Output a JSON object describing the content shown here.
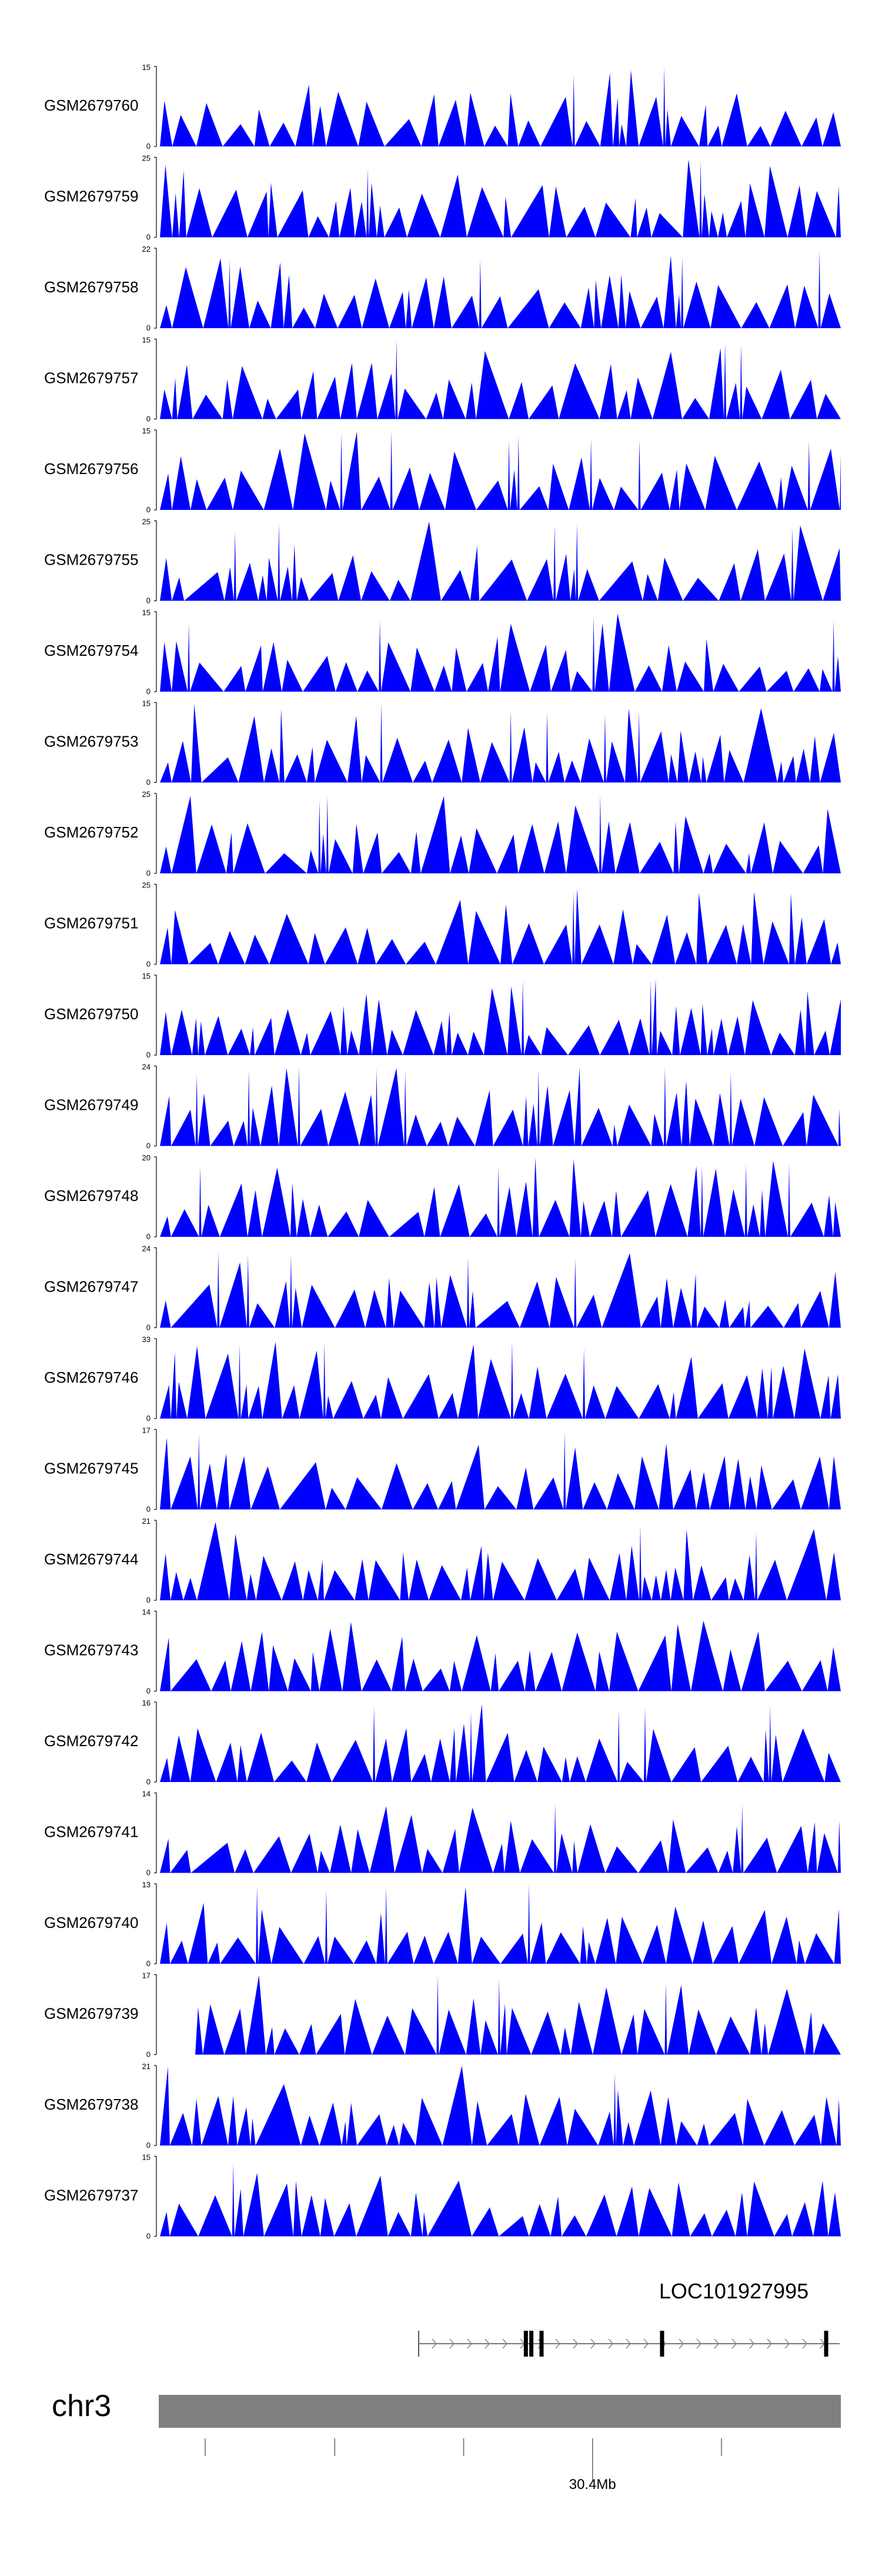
{
  "chart_data": {
    "type": "area",
    "title": "",
    "color": "#0000ff",
    "tracks": [
      {
        "name": "GSM2679760",
        "ymax": "15",
        "ymin": "0",
        "seed": 7601
      },
      {
        "name": "GSM2679759",
        "ymax": "25",
        "ymin": "0",
        "seed": 7592
      },
      {
        "name": "GSM2679758",
        "ymax": "22",
        "ymin": "0",
        "seed": 7583
      },
      {
        "name": "GSM2679757",
        "ymax": "15",
        "ymin": "0",
        "seed": 7574
      },
      {
        "name": "GSM2679756",
        "ymax": "15",
        "ymin": "0",
        "seed": 7565
      },
      {
        "name": "GSM2679755",
        "ymax": "25",
        "ymin": "0",
        "seed": 7556
      },
      {
        "name": "GSM2679754",
        "ymax": "15",
        "ymin": "0",
        "seed": 7547
      },
      {
        "name": "GSM2679753",
        "ymax": "15",
        "ymin": "0",
        "seed": 7538
      },
      {
        "name": "GSM2679752",
        "ymax": "25",
        "ymin": "0",
        "seed": 7529
      },
      {
        "name": "GSM2679751",
        "ymax": "25",
        "ymin": "0",
        "seed": 7510
      },
      {
        "name": "GSM2679750",
        "ymax": "15",
        "ymin": "0",
        "seed": 7501
      },
      {
        "name": "GSM2679749",
        "ymax": "24",
        "ymin": "0",
        "seed": 7492
      },
      {
        "name": "GSM2679748",
        "ymax": "20",
        "ymin": "0",
        "seed": 7483
      },
      {
        "name": "GSM2679747",
        "ymax": "24",
        "ymin": "0",
        "seed": 7474
      },
      {
        "name": "GSM2679746",
        "ymax": "33",
        "ymin": "0",
        "seed": 7465
      },
      {
        "name": "GSM2679745",
        "ymax": "17",
        "ymin": "0",
        "seed": 7456
      },
      {
        "name": "GSM2679744",
        "ymax": "21",
        "ymin": "0",
        "seed": 7447
      },
      {
        "name": "GSM2679743",
        "ymax": "14",
        "ymin": "0",
        "seed": 7438
      },
      {
        "name": "GSM2679742",
        "ymax": "16",
        "ymin": "0",
        "seed": 7429
      },
      {
        "name": "GSM2679741",
        "ymax": "14",
        "ymin": "0",
        "seed": 7410
      },
      {
        "name": "GSM2679740",
        "ymax": "13",
        "ymin": "0",
        "seed": 7401
      },
      {
        "name": "GSM2679739",
        "ymax": "17",
        "ymin": "0",
        "seed": 7392
      },
      {
        "name": "GSM2679738",
        "ymax": "21",
        "ymin": "0",
        "seed": 7383
      },
      {
        "name": "GSM2679737",
        "ymax": "15",
        "ymin": "0",
        "seed": 7374
      }
    ],
    "gene": {
      "name": "LOC101927995",
      "strand": "+",
      "exons": [
        0.537,
        0.545,
        0.56,
        0.737,
        0.978
      ]
    },
    "chromosome": {
      "name": "chr3",
      "ticks": [
        0.068,
        0.258,
        0.447,
        0.636,
        0.825
      ],
      "labeled_tick": 0.636,
      "labeled_tick_text": "30.4Mb"
    }
  }
}
